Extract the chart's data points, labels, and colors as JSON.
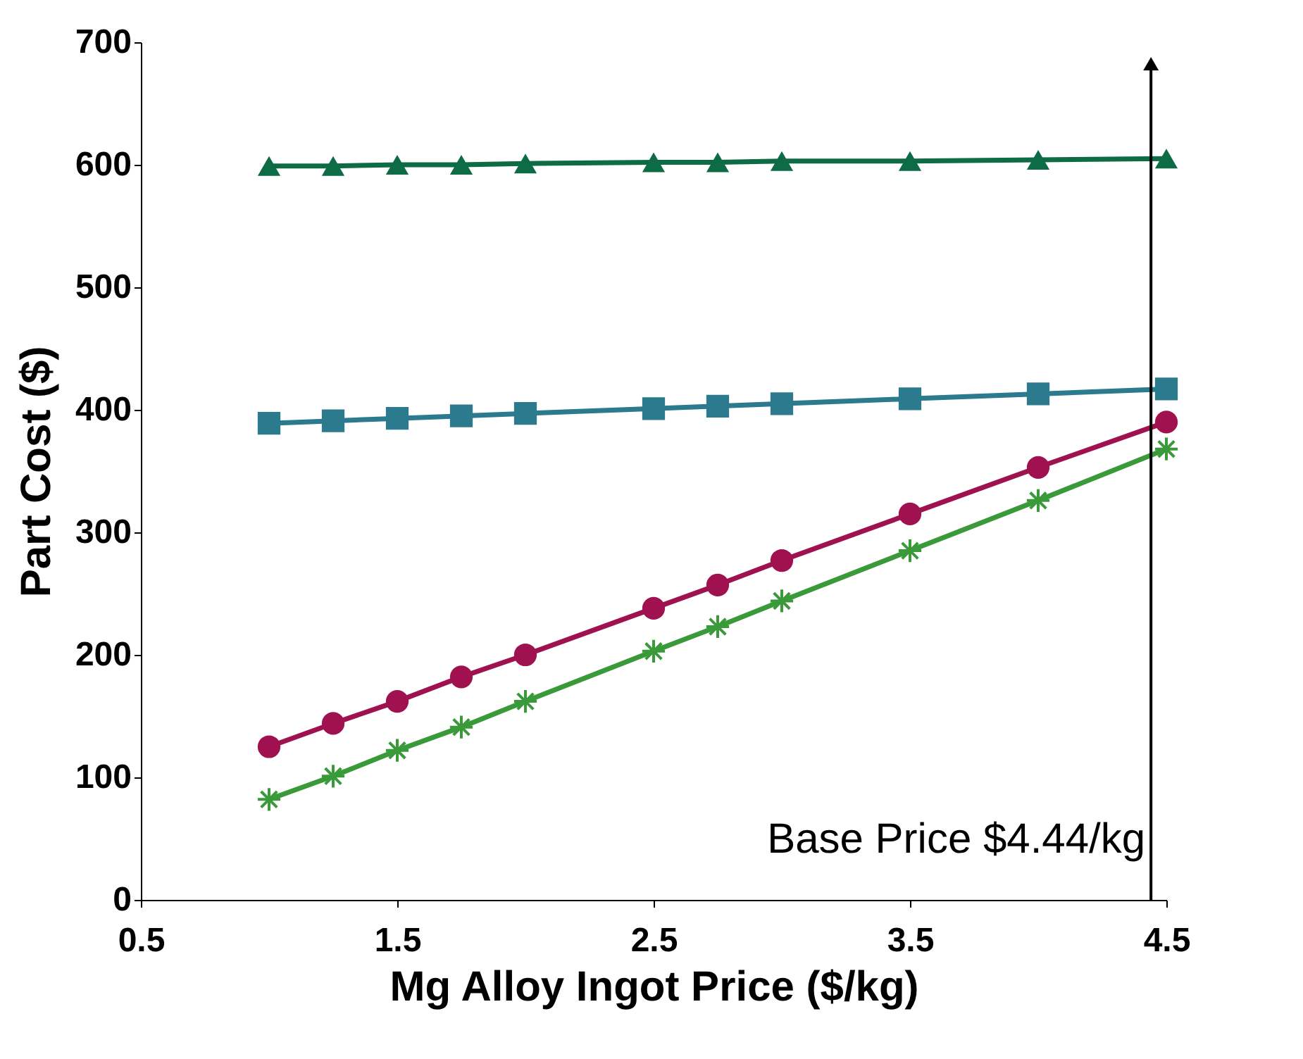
{
  "chart_data": {
    "type": "line",
    "xlabel": "Mg Alloy Ingot Price ($/kg)",
    "ylabel": "Part Cost ($)",
    "x": [
      1,
      1.25,
      1.5,
      1.75,
      2,
      2.5,
      2.75,
      3,
      3.5,
      4,
      4.5
    ],
    "series": [
      {
        "color": "#0d6b45",
        "marker": "triangle",
        "values": [
          599,
          599,
          600,
          600,
          601,
          602,
          602,
          603,
          603,
          604,
          605
        ]
      },
      {
        "color": "#2b7a8e",
        "marker": "square",
        "values": [
          389,
          391,
          393,
          395,
          397,
          401,
          403,
          405,
          409,
          413,
          417
        ]
      },
      {
        "color": "#a0124f",
        "marker": "circle",
        "values": [
          125,
          144,
          162,
          182,
          200,
          238,
          257,
          277,
          315,
          353,
          390
        ]
      },
      {
        "color": "#3a9a3a",
        "marker": "cross",
        "values": [
          82,
          101,
          122,
          141,
          162,
          203,
          223,
          244,
          285,
          326,
          368
        ]
      }
    ],
    "xlim": [
      0.5,
      4.5
    ],
    "xticks": [
      0.5,
      1.5,
      2.5,
      3.5,
      4.5
    ],
    "ylim": [
      0,
      700
    ],
    "yticks": [
      0,
      100,
      200,
      300,
      400,
      500,
      600,
      700
    ],
    "ref_lines": [
      {
        "axis": "x",
        "value": 4.44,
        "label": "Base Price $4.44/kg",
        "color": "#000000"
      }
    ],
    "grid": false,
    "line_style": "solid"
  }
}
